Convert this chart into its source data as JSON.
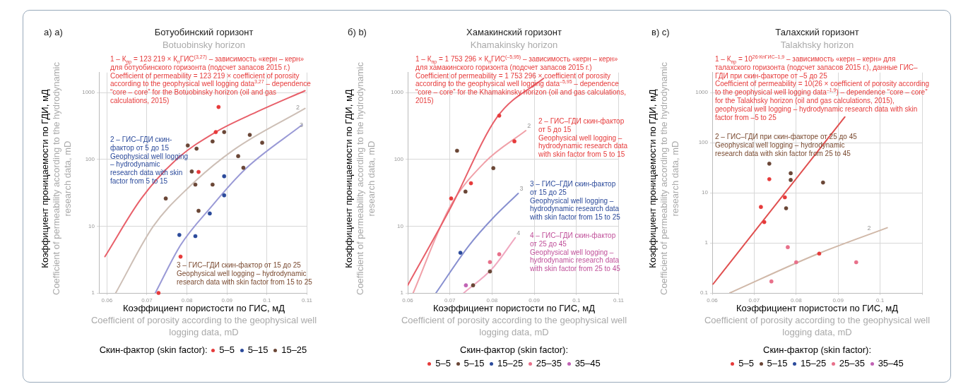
{
  "chart_data": [
    {
      "type": "scatter",
      "title": "Ботуобинский горизонт",
      "subtitle": "Botuobinsky horizon",
      "xlabel": "Коэффициент пористости по ГИС, мД\nCoefficient of porosity according to the geophysical well logging data, mD",
      "ylabel": "Коэффициент проницаемости по ГДИ, мД\nCoefficient of permeability according to the hydrodynamic research data, mD",
      "legend_title": "Скин-фактор (skin factor):",
      "annotations": [
        "а) a)",
        "1 – К$_{пр}$ = 123 219 × К$_{п}$ГИС$^{(3,27)}$ – зависимость «керн – керн» для ботуобинского горизонта (подсчет запасов 2015 г.)\nCoefficient of permeability = 123 219 × coefficient of porosity according to the geophysical well logging data$^{3,27}$ – dependence “core – core” for the Botuobinsky horizon (oil and gas calculations, 2015)",
        "2 – ГИС–ГДИ скин-фактор от 5 до 15\nGeophysical well logging – hydrodynamic research data with skin factor from 5 to 15",
        "3 – ГИС–ГДИ скин-фактор от 15 до 25\nGeophysical well logging – hydrodynamic research data with skin factor from 15 to 25",
        {
          "text": "2",
          "x": 0.1069,
          "y": 513
        },
        {
          "text": "3",
          "x": 0.1078,
          "y": 277
        }
      ],
      "series": [
        {
          "name": "5–5",
          "color": "#e63a3a",
          "x": [
            0.0879,
            0.0872,
            0.0829,
            0.0784,
            0.0729
          ],
          "values": [
            610,
            257,
            65,
            3.5,
            1.0
          ]
        },
        {
          "name": "5–15",
          "color": "#2b4a9b",
          "x": [
            0.0893,
            0.0893,
            0.0857,
            0.0781,
            0.0821
          ],
          "values": [
            56,
            29,
            15.5,
            7.4,
            7.1
          ]
        },
        {
          "name": "15–25",
          "color": "#6a4636",
          "x": [
            0.0893,
            0.0957,
            0.0864,
            0.0802,
            0.0824,
            0.0988,
            0.0928,
            0.0941,
            0.0812,
            0.0821,
            0.0864,
            0.0747,
            0.0829
          ],
          "values": [
            257,
            233,
            186,
            162,
            145,
            178,
            112,
            75,
            66,
            42,
            42,
            26,
            17
          ]
        },
        {
          "type": "line",
          "marker": "none",
          "color": "#e8606a",
          "x": [
            0.0595,
            0.0686,
            0.0772,
            0.0872,
            0.0974,
            0.1095
          ],
          "values": [
            3.5,
            26,
            98,
            257,
            513,
            1070
          ]
        },
        {
          "type": "line",
          "marker": "none",
          "color": "#cdbfb6",
          "x": [
            0.0622,
            0.0716,
            0.0802,
            0.0916,
            0.1095
          ],
          "values": [
            1,
            10,
            37,
            138,
            580
          ]
        },
        {
          "type": "line",
          "marker": "none",
          "color": "#9a9ad6",
          "x": [
            0.0721,
            0.0784,
            0.0859,
            0.0945,
            0.1088
          ],
          "values": [
            1,
            5.2,
            19,
            71,
            330
          ]
        }
      ],
      "xlim": [
        0.058,
        0.11
      ],
      "xticks": [
        0.06,
        0.07,
        0.08,
        0.09,
        0.1,
        0.11
      ],
      "ylim": [
        1,
        2000
      ],
      "yticks": [
        1,
        10,
        100,
        1000
      ],
      "log": "y",
      "grid": true,
      "legend": "bottom",
      "marker": "circle"
    },
    {
      "type": "scatter",
      "title": "Хамакинский горизонт",
      "subtitle": "Khamakinsky horizon",
      "xlabel": "Коэффициент пористости по ГИС, мД\nCoefficient of porosity according to the geophysical well logging data, mD",
      "ylabel": "Коэффициент проницаемости по ГДИ, мД\nCoefficient of permeability according to the hydrodynamic research data, mD",
      "legend_title": "Скин-фактор (skin factor):",
      "annotations": [
        "б) b)",
        "1 – К$_{пр}$ = 1 753 296 × К$_{п}$ГИС$^{(–5,95)}$ – зависимость «керн – керн» для хамакинского горизонта (подсчет запасов 2015 г.)\nCoefficient of permeability = 1 753 296 × coefficient of porosity according to the geophysical well logging data$^{–5,95}$ – dependence “core – core” for the Khamakinsky horizon (oil and gas calculations, 2015)",
        "2 – ГИС–ГДИ скин-фактор от 5 до 15\nGeophysical well logging – hydrodynamic research data with skin factor from 5 to 15",
        "3 – ГИС–ГДИ скин-фактор от 15 до 25\nGeophysical well logging – hydrodynamic research data with skin factor from 15 to 25",
        "4 – ГИС–ГДИ скин-фактор от 25 до 45\nGeophysical well logging – hydrodynamic research data with skin factor from 25 to 45",
        {
          "text": "2",
          "x": 0.088,
          "y": 270
        },
        {
          "text": "3",
          "x": 0.0862,
          "y": 31
        },
        {
          "text": "4",
          "x": 0.0855,
          "y": 6.7
        }
      ],
      "series": [
        {
          "name": "5–5",
          "color": "#e63a3a",
          "x": [
            0.0817,
            0.0853,
            0.0703,
            0.075
          ],
          "values": [
            453,
            187,
            26,
            44
          ]
        },
        {
          "name": "5–15",
          "color": "#6a4636",
          "x": [
            0.0717,
            0.0803,
            0.0737,
            0.0795,
            0.0755
          ],
          "values": [
            135,
            74,
            33,
            2.1,
            1.3
          ]
        },
        {
          "name": "15–25",
          "color": "#2b4a9b",
          "x": [
            0.0725
          ],
          "values": [
            4.0
          ]
        },
        {
          "name": "25–35",
          "color": "#e8708a",
          "x": [
            0.0817,
            0.0795
          ],
          "values": [
            3.8,
            2.9
          ]
        },
        {
          "name": "35–45",
          "color": "#c062b4",
          "x": [
            0.0738
          ],
          "values": [
            1.3
          ]
        },
        {
          "type": "line",
          "marker": "none",
          "color": "#e8606a",
          "x": [
            0.06,
            0.07,
            0.0812,
            0.0922
          ],
          "values": [
            1.3,
            18,
            430,
            1640
          ]
        },
        {
          "type": "line",
          "marker": "none",
          "color": "#f0a0a8",
          "x": [
            0.0613,
            0.07,
            0.0783,
            0.088
          ],
          "values": [
            1,
            19.4,
            91,
            270
          ]
        },
        {
          "type": "line",
          "marker": "none",
          "color": "#8890d0",
          "x": [
            0.0667,
            0.0745,
            0.08,
            0.0862
          ],
          "values": [
            1,
            5.1,
            12.8,
            31
          ]
        },
        {
          "type": "line",
          "marker": "none",
          "color": "#f0a8c0",
          "x": [
            0.0733,
            0.08,
            0.0855
          ],
          "values": [
            1,
            2.3,
            6.7
          ]
        }
      ],
      "xlim": [
        0.06,
        0.11
      ],
      "xticks": [
        0.06,
        0.07,
        0.08,
        0.09,
        0.1,
        0.11
      ],
      "ylim": [
        1,
        2000
      ],
      "yticks": [
        1,
        10,
        100,
        1000
      ],
      "log": "y",
      "grid": true,
      "legend": "bottom",
      "marker": "circle"
    },
    {
      "type": "scatter",
      "title": "Талахский горизонт",
      "subtitle": "Talakhsky horizon",
      "xlabel": "Коэффициент пористости по ГИС, мД\nCoefficient of porosity according to the geophysical well logging data, mD",
      "ylabel": "Коэффициент проницаемости по ГДИ, мД\nCoefficient of permeability according to the hydrodynamic research data, mD",
      "legend_title": "Скин-фактор (skin factor):",
      "annotations": [
        "в) c)",
        "1 – К$_{пр}$ = 10$^{26·КпГИС–1,9}$ – зависимость «керн – керн» для талахского горизонта (подсчет запасов 2015 г.), данные ГИС–ГДИ при скин-факторе от –5 до 25\nCoefficient of permeability = 10(26 × coefficient of porosity according to the geophysical well logging data$^{–1,9}$) – dependence “core – core” for the Talakhsky horizon (oil and gas calculations, 2015), geophysical well logging – hydrodynamic research data with skin factor from –5 to 25",
        "2 – ГИС–ГДИ при скин-факторе от 25 до 45\nGeophysical well logging – hydrodynamic research data with skin factor from 25 to 45",
        {
          "text": "2",
          "x": 0.0966,
          "y": 1.6
        }
      ],
      "series": [
        {
          "name": "5–5",
          "color": "#e63a3a",
          "x": [
            0.0736,
            0.0773,
            0.0716,
            0.0724,
            0.0855
          ],
          "values": [
            18.6,
            8.1,
            5.2,
            2.6,
            0.61
          ]
        },
        {
          "name": "5–15",
          "color": "#6a4636",
          "x": [
            0.0736,
            0.0787,
            0.0787,
            0.0864,
            0.0776
          ],
          "values": [
            38,
            24.5,
            18,
            16,
            4.9
          ]
        },
        {
          "name": "15–25",
          "color": "#2b4a9b"
        },
        {
          "name": "25–35",
          "color": "#e8708a",
          "x": [
            0.078,
            0.08,
            0.0943,
            0.0741
          ],
          "values": [
            0.82,
            0.41,
            0.41,
            0.17
          ]
        },
        {
          "name": "35–45",
          "color": "#c062b4"
        },
        {
          "type": "line",
          "marker": "none",
          "color": "#e05050",
          "x": [
            0.0602,
            0.0916
          ],
          "values": [
            0.15,
            325
          ]
        },
        {
          "type": "line",
          "marker": "none",
          "color": "#d0b8a8",
          "x": [
            0.0642,
            0.0849,
            0.1017
          ],
          "values": [
            0.1,
            0.59,
            2.0
          ]
        }
      ],
      "xlim": [
        0.06,
        0.11
      ],
      "xticks": [
        0.06,
        0.07,
        0.08,
        0.09,
        0.1,
        {
          "value": 0.11,
          "label": null
        }
      ],
      "ylim": [
        0.1,
        2500
      ],
      "yticks": [
        0.1,
        1,
        10,
        100,
        1000
      ],
      "log": "y",
      "grid": true,
      "legend": "bottom",
      "marker": "circle"
    }
  ]
}
